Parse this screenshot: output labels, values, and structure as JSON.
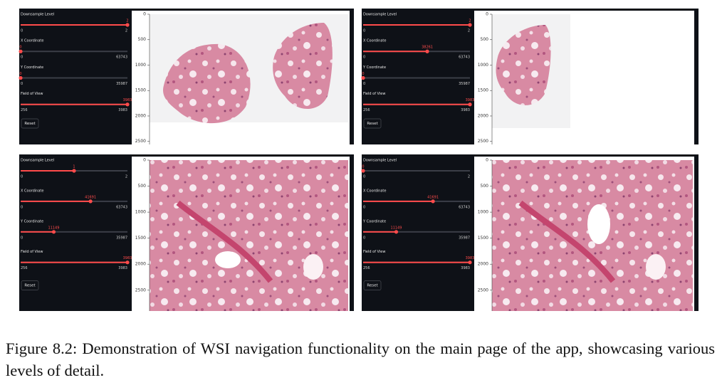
{
  "figure": {
    "panels": [
      {
        "sliders": [
          {
            "label": "Downsample Level",
            "value": 2,
            "min": 0,
            "max": 2
          },
          {
            "label": "X Coordinate",
            "value": 0,
            "min": 0,
            "max": 63743
          },
          {
            "label": "Y Coordinate",
            "value": 0,
            "min": 0,
            "max": 35987
          },
          {
            "label": "Field of View",
            "value": 3983,
            "min": 256,
            "max": 3983
          }
        ],
        "button": "Reset",
        "ylim": [
          0,
          2560
        ],
        "yticks": [
          0,
          500,
          1000,
          1500,
          2000,
          2500
        ]
      },
      {
        "sliders": [
          {
            "label": "Downsample Level",
            "value": 2,
            "min": 0,
            "max": 2
          },
          {
            "label": "X Coordinate",
            "value": 38261,
            "min": 0,
            "max": 63743
          },
          {
            "label": "Y Coordinate",
            "value": 0,
            "min": 0,
            "max": 35987
          },
          {
            "label": "Field of View",
            "value": 3983,
            "min": 256,
            "max": 3983
          }
        ],
        "button": "Reset",
        "ylim": [
          0,
          2560
        ],
        "yticks": [
          0,
          500,
          1000,
          1500,
          2000,
          2500
        ]
      },
      {
        "sliders": [
          {
            "label": "Downsample Level",
            "value": 1,
            "min": 0,
            "max": 2
          },
          {
            "label": "X Coordinate",
            "value": 41691,
            "min": 0,
            "max": 63743
          },
          {
            "label": "Y Coordinate",
            "value": 11149,
            "min": 0,
            "max": 35987
          },
          {
            "label": "Field of View",
            "value": 3983,
            "min": 256,
            "max": 3983
          }
        ],
        "button": "Reset",
        "ylim": [
          0,
          2900
        ],
        "yticks": [
          0,
          500,
          1000,
          1500,
          2000,
          2500
        ]
      },
      {
        "sliders": [
          {
            "label": "Downsample Level",
            "value": 0,
            "min": 0,
            "max": 2
          },
          {
            "label": "X Coordinate",
            "value": 41691,
            "min": 0,
            "max": 63743
          },
          {
            "label": "Y Coordinate",
            "value": 11149,
            "min": 0,
            "max": 35987
          },
          {
            "label": "Field of View",
            "value": 3983,
            "min": 256,
            "max": 3983
          }
        ],
        "button": "Reset",
        "ylim": [
          0,
          2900
        ],
        "yticks": [
          0,
          500,
          1000,
          1500,
          2000,
          2500
        ]
      }
    ],
    "caption": "Figure 8.2: Demonstration of WSI navigation functionality on the main page of the app, showcasing various levels of detail."
  }
}
